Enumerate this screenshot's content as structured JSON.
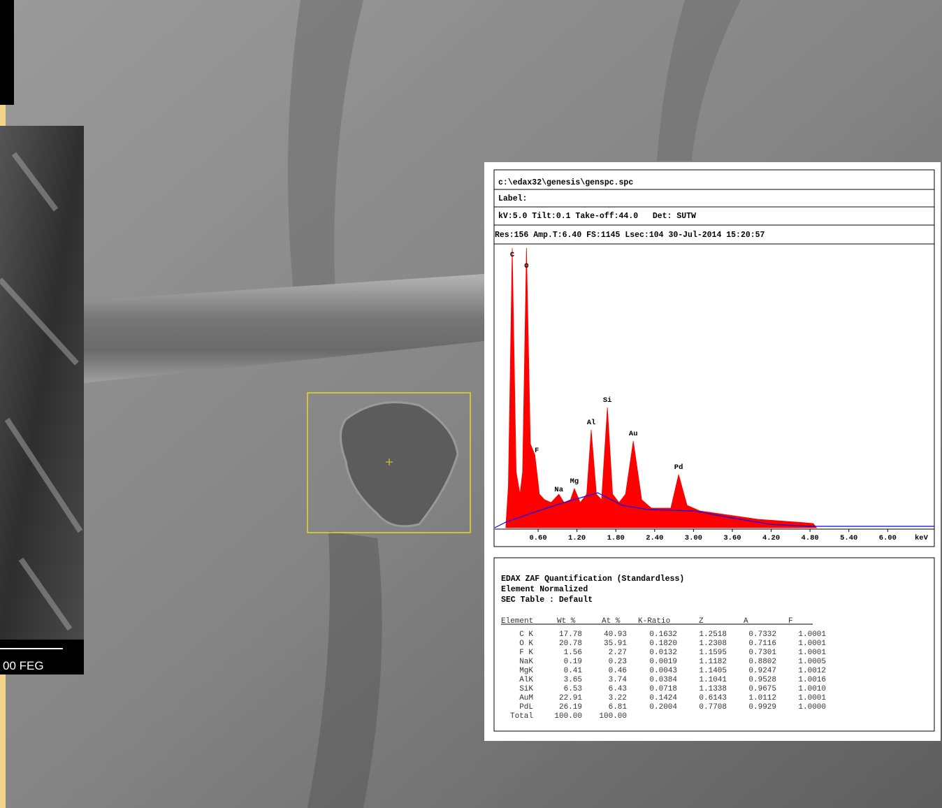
{
  "sem": {
    "scale_label": "00 FEG"
  },
  "header": {
    "file": "c:\\edax32\\genesis\\genspc.spc",
    "label": "Label:",
    "line3": "kV:5.0 Tilt:0.1 Take-off:44.0   Det: SUTW",
    "line4": "Res:156 Amp.T:6.40 FS:1145 Lsec:104 30-Jul-2014 15:20:57"
  },
  "chart_data": {
    "type": "area",
    "x_unit": "keV",
    "color": "#ff0000",
    "x": [
      0.1,
      0.14,
      0.2,
      0.26,
      0.32,
      0.36,
      0.42,
      0.48,
      0.55,
      0.62,
      0.7,
      0.8,
      0.92,
      1.0,
      1.1,
      1.16,
      1.25,
      1.35,
      1.42,
      1.5,
      1.58,
      1.67,
      1.75,
      1.85,
      1.95,
      2.07,
      2.2,
      2.35,
      2.5,
      2.65,
      2.77,
      2.9,
      3.1,
      3.4,
      3.7,
      4.0,
      4.3,
      4.6,
      4.85,
      4.9
    ],
    "values": [
      0,
      15,
      100,
      20,
      12,
      20,
      100,
      30,
      26,
      12,
      10,
      9,
      12,
      9,
      10,
      14,
      9,
      12,
      35,
      12,
      10,
      43,
      12,
      9,
      12,
      31,
      10,
      7,
      7,
      7,
      19,
      8,
      6,
      5,
      4,
      3,
      2.5,
      2,
      1.5,
      0
    ],
    "background": {
      "color": "#0000ff",
      "x": [
        -0.07,
        0.1,
        0.6,
        1.0,
        1.52,
        1.9,
        2.3,
        3.0,
        3.6,
        4.2,
        4.8,
        6.72
      ],
      "values": [
        0,
        2,
        6,
        9,
        12.5,
        8,
        6.5,
        6,
        3.5,
        1.2,
        0.5,
        0.5
      ]
    },
    "peak_labels": [
      {
        "text": "C",
        "x": 0.2,
        "y": 97
      },
      {
        "text": "O",
        "x": 0.42,
        "y": 93
      },
      {
        "text": "F",
        "x": 0.58,
        "y": 27
      },
      {
        "text": "Na",
        "x": 0.92,
        "y": 13
      },
      {
        "text": "Mg",
        "x": 1.16,
        "y": 16
      },
      {
        "text": "Al",
        "x": 1.42,
        "y": 37
      },
      {
        "text": "Si",
        "x": 1.67,
        "y": 45
      },
      {
        "text": "Au",
        "x": 2.07,
        "y": 33
      },
      {
        "text": "Pd",
        "x": 2.77,
        "y": 21
      }
    ],
    "xlim": [
      -0.07,
      6.72
    ],
    "ylim": [
      0,
      100
    ],
    "xticks": [
      {
        "value": 0.6,
        "label": "0.60"
      },
      {
        "value": 1.2,
        "label": "1.20"
      },
      {
        "value": 1.8,
        "label": "1.80"
      },
      {
        "value": 2.4,
        "label": "2.40"
      },
      {
        "value": 3.0,
        "label": "3.00"
      },
      {
        "value": 3.6,
        "label": "3.60"
      },
      {
        "value": 4.2,
        "label": "4.20"
      },
      {
        "value": 4.8,
        "label": "4.80"
      },
      {
        "value": 5.4,
        "label": "5.40"
      },
      {
        "value": 6.0,
        "label": "6.00"
      }
    ]
  },
  "quant": {
    "title": [
      "EDAX ZAF Quantification (Standardless)",
      "Element Normalized",
      "SEC Table : Default"
    ],
    "columns": [
      "Element",
      "Wt %",
      "At %",
      "K-Ratio",
      "Z",
      "A",
      "F"
    ],
    "rows": [
      [
        "C K",
        "17.78",
        "40.93",
        "0.1632",
        "1.2518",
        "0.7332",
        "1.0001"
      ],
      [
        "O K",
        "20.78",
        "35.91",
        "0.1820",
        "1.2308",
        "0.7116",
        "1.0001"
      ],
      [
        "F K",
        "1.56",
        "2.27",
        "0.0132",
        "1.1595",
        "0.7301",
        "1.0001"
      ],
      [
        "NaK",
        "0.19",
        "0.23",
        "0.0019",
        "1.1182",
        "0.8802",
        "1.0005"
      ],
      [
        "MgK",
        "0.41",
        "0.46",
        "0.0043",
        "1.1405",
        "0.9247",
        "1.0012"
      ],
      [
        "AlK",
        "3.65",
        "3.74",
        "0.0384",
        "1.1041",
        "0.9528",
        "1.0016"
      ],
      [
        "SiK",
        "6.53",
        "6.43",
        "0.0718",
        "1.1338",
        "0.9675",
        "1.0010"
      ],
      [
        "AuM",
        "22.91",
        "3.22",
        "0.1424",
        "0.6143",
        "1.0112",
        "1.0001"
      ],
      [
        "PdL",
        "26.19",
        "6.81",
        "0.2004",
        "0.7708",
        "0.9929",
        "1.0000"
      ],
      [
        "Total",
        "100.00",
        "100.00"
      ]
    ]
  }
}
